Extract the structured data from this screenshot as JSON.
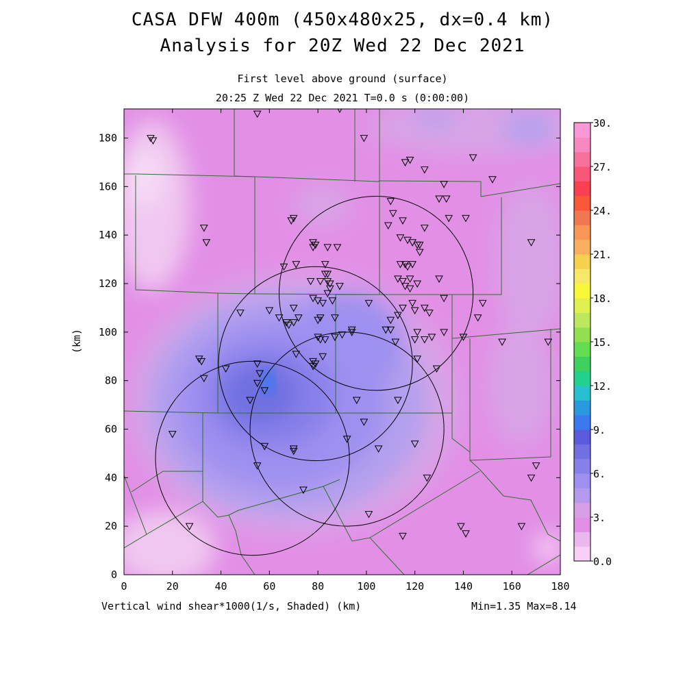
{
  "header": {
    "title_line1": "CASA DFW 400m (450x480x25, dx=0.4 km)",
    "title_line2": "Analysis for 20Z Wed 22 Dec 2021",
    "subtitle_line1": "First level above ground (surface)",
    "subtitle_line2": "20:25 Z Wed 22 Dec 2021   T=0.0 s (0:00:00)"
  },
  "footer": {
    "field_label": "Vertical wind shear*1000(1/s, Shaded)  (km)",
    "min_max": "Min=1.35 Max=8.14"
  },
  "chart_data": {
    "type": "heatmap",
    "ylabel": "(km)",
    "x_ticks": [
      "0",
      "20",
      "40",
      "60",
      "80",
      "100",
      "120",
      "140",
      "160",
      "180"
    ],
    "y_ticks": [
      "0",
      "20",
      "40",
      "60",
      "80",
      "100",
      "120",
      "140",
      "160",
      "180"
    ],
    "xlim": [
      0,
      180
    ],
    "ylim": [
      0,
      192
    ],
    "colorbar": {
      "range": [
        0,
        30
      ],
      "labels": [
        "30.",
        "27.",
        "24.",
        "21.",
        "18.",
        "15.",
        "12.",
        "9.",
        "6.",
        "3.",
        "0.0"
      ],
      "colors": [
        "#f8d0f6",
        "#eab8ee",
        "#e290e6",
        "#d8a0e4",
        "#b49aec",
        "#9e90f0",
        "#8880ea",
        "#7070e0",
        "#5a5adc",
        "#3c78f0",
        "#2a9ae0",
        "#26c0d0",
        "#22d090",
        "#40d060",
        "#62dc50",
        "#92e050",
        "#bce860",
        "#e0f050",
        "#f8f838",
        "#f8e868",
        "#f8d050",
        "#f8b060",
        "#f89858",
        "#f07850",
        "#f85838",
        "#f84050",
        "#f85878",
        "#f8709c",
        "#f888c0",
        "#f898d8"
      ]
    },
    "min": 1.35,
    "max": 8.14,
    "radar_rings": [
      {
        "cx_km": 79,
        "cy_km": 87,
        "radius_km": 40
      },
      {
        "cx_km": 104,
        "cy_km": 116,
        "radius_km": 40
      },
      {
        "cx_km": 92,
        "cy_km": 60,
        "radius_km": 40
      },
      {
        "cx_km": 53,
        "cy_km": 48,
        "radius_km": 40
      }
    ],
    "stations_km": [
      [
        11,
        180
      ],
      [
        12,
        179
      ],
      [
        55,
        190
      ],
      [
        89,
        192
      ],
      [
        99,
        180
      ],
      [
        118,
        171
      ],
      [
        116,
        170
      ],
      [
        124,
        167
      ],
      [
        144,
        172
      ],
      [
        152,
        163
      ],
      [
        33,
        143
      ],
      [
        34,
        137
      ],
      [
        70,
        147
      ],
      [
        69,
        146
      ],
      [
        132,
        161
      ],
      [
        130,
        155
      ],
      [
        133,
        155
      ],
      [
        110,
        154
      ],
      [
        111,
        149
      ],
      [
        115,
        146
      ],
      [
        109,
        144
      ],
      [
        124,
        143
      ],
      [
        141,
        147
      ],
      [
        134,
        147
      ],
      [
        168,
        137
      ],
      [
        78,
        137
      ],
      [
        79,
        136
      ],
      [
        78,
        135
      ],
      [
        84,
        135
      ],
      [
        88,
        135
      ],
      [
        114,
        139
      ],
      [
        117,
        138
      ],
      [
        119,
        137
      ],
      [
        121,
        136
      ],
      [
        122,
        136
      ],
      [
        122,
        133
      ],
      [
        116,
        128
      ],
      [
        117,
        127
      ],
      [
        119,
        128
      ],
      [
        114,
        128
      ],
      [
        130,
        122
      ],
      [
        113,
        122
      ],
      [
        115,
        121
      ],
      [
        118,
        122
      ],
      [
        116,
        119
      ],
      [
        118,
        118
      ],
      [
        121,
        120
      ],
      [
        66,
        127
      ],
      [
        71,
        128
      ],
      [
        83,
        128
      ],
      [
        83,
        124
      ],
      [
        84,
        124
      ],
      [
        77,
        121
      ],
      [
        81,
        121
      ],
      [
        84,
        121
      ],
      [
        85,
        120
      ],
      [
        85,
        118
      ],
      [
        89,
        119
      ],
      [
        84,
        116
      ],
      [
        78,
        114
      ],
      [
        80,
        113
      ],
      [
        82,
        112
      ],
      [
        86,
        113
      ],
      [
        101,
        112
      ],
      [
        115,
        110
      ],
      [
        119,
        112
      ],
      [
        120,
        109
      ],
      [
        124,
        110
      ],
      [
        126,
        108
      ],
      [
        132,
        114
      ],
      [
        148,
        112
      ],
      [
        146,
        106
      ],
      [
        60,
        109
      ],
      [
        64,
        106
      ],
      [
        70,
        110
      ],
      [
        72,
        106
      ],
      [
        70,
        104
      ],
      [
        67,
        104
      ],
      [
        68,
        103
      ],
      [
        80,
        105
      ],
      [
        81,
        106
      ],
      [
        87,
        106
      ],
      [
        121,
        100
      ],
      [
        108,
        101
      ],
      [
        110,
        101
      ],
      [
        113,
        107
      ],
      [
        110,
        105
      ],
      [
        94,
        101
      ],
      [
        94,
        100
      ],
      [
        90,
        99
      ],
      [
        87,
        98
      ],
      [
        80,
        98
      ],
      [
        81,
        97
      ],
      [
        83,
        97
      ],
      [
        112,
        96
      ],
      [
        120,
        97
      ],
      [
        124,
        97
      ],
      [
        127,
        98
      ],
      [
        132,
        100
      ],
      [
        140,
        98
      ],
      [
        156,
        96
      ],
      [
        175,
        96
      ],
      [
        31,
        89
      ],
      [
        32,
        88
      ],
      [
        33,
        81
      ],
      [
        71,
        91
      ],
      [
        82,
        90
      ],
      [
        78,
        88
      ],
      [
        79,
        87
      ],
      [
        78,
        86
      ],
      [
        55,
        87
      ],
      [
        56,
        83
      ],
      [
        55,
        79
      ],
      [
        58,
        76
      ],
      [
        52,
        72
      ],
      [
        42,
        85
      ],
      [
        121,
        89
      ],
      [
        129,
        85
      ],
      [
        113,
        72
      ],
      [
        96,
        72
      ],
      [
        20,
        58
      ],
      [
        58,
        53
      ],
      [
        70,
        51
      ],
      [
        99,
        63
      ],
      [
        92,
        56
      ],
      [
        105,
        52
      ],
      [
        120,
        54
      ],
      [
        125,
        40
      ],
      [
        55,
        45
      ],
      [
        74,
        35
      ],
      [
        101,
        25
      ],
      [
        115,
        16
      ],
      [
        139,
        20
      ],
      [
        141,
        17
      ],
      [
        164,
        20
      ],
      [
        168,
        40
      ],
      [
        170,
        45
      ],
      [
        27,
        20
      ],
      [
        48,
        108
      ],
      [
        70,
        52
      ]
    ]
  }
}
